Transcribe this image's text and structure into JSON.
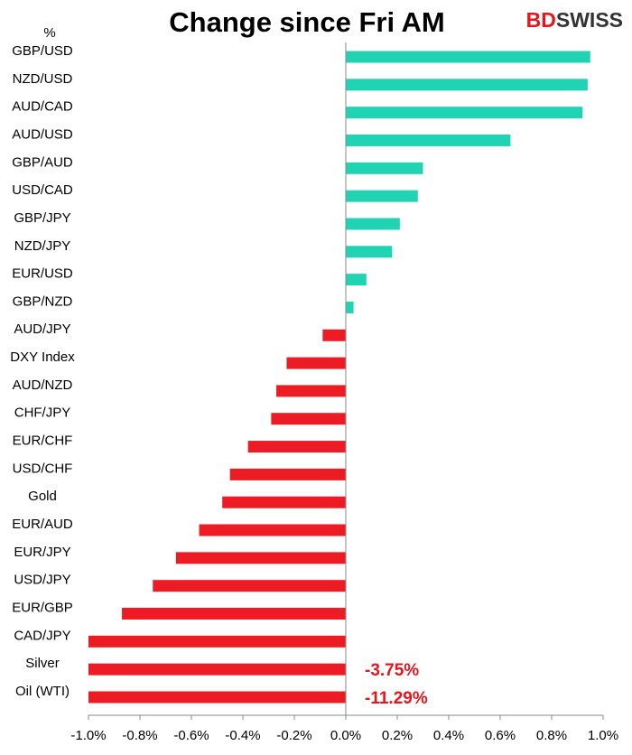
{
  "chart_data": {
    "type": "hbar",
    "title": "Change since Fri AM",
    "unit_label": "%",
    "logo": {
      "red": "BD",
      "dark": "SWISS"
    },
    "categories": [
      "GBP/USD",
      "NZD/USD",
      "AUD/CAD",
      "AUD/USD",
      "GBP/AUD",
      "USD/CAD",
      "GBP/JPY",
      "NZD/JPY",
      "EUR/USD",
      "GBP/NZD",
      "AUD/JPY",
      "DXY Index",
      "AUD/NZD",
      "CHF/JPY",
      "EUR/CHF",
      "USD/CHF",
      "Gold",
      "EUR/AUD",
      "EUR/JPY",
      "USD/JPY",
      "EUR/GBP",
      "CAD/JPY",
      "Silver",
      "Oil (WTI)"
    ],
    "values": [
      0.95,
      0.94,
      0.92,
      0.64,
      0.3,
      0.28,
      0.21,
      0.18,
      0.08,
      0.03,
      -0.09,
      -0.23,
      -0.27,
      -0.29,
      -0.38,
      -0.45,
      -0.48,
      -0.57,
      -0.66,
      -0.75,
      -0.87,
      -1.0,
      -3.75,
      -11.29
    ],
    "value_labels": [
      null,
      null,
      null,
      null,
      null,
      null,
      null,
      null,
      null,
      null,
      null,
      null,
      null,
      null,
      null,
      null,
      null,
      null,
      null,
      null,
      null,
      null,
      "-3.75%",
      "-11.29%"
    ],
    "positive_color": "#20d3b3",
    "negative_color": "#ed1c24",
    "xlim": [
      -1.0,
      1.0
    ],
    "xticks": [
      {
        "value": -1.0,
        "label": "-1.0%"
      },
      {
        "value": -0.8,
        "label": "-0.8%"
      },
      {
        "value": -0.6,
        "label": "-0.6%"
      },
      {
        "value": -0.4,
        "label": "-0.4%"
      },
      {
        "value": -0.2,
        "label": "-0.2%"
      },
      {
        "value": 0.0,
        "label": "0.0%"
      },
      {
        "value": 0.2,
        "label": "0.2%"
      },
      {
        "value": 0.4,
        "label": "0.4%"
      },
      {
        "value": 0.6,
        "label": "0.6%"
      },
      {
        "value": 0.8,
        "label": "0.8%"
      },
      {
        "value": 1.0,
        "label": "1.0%"
      }
    ]
  }
}
